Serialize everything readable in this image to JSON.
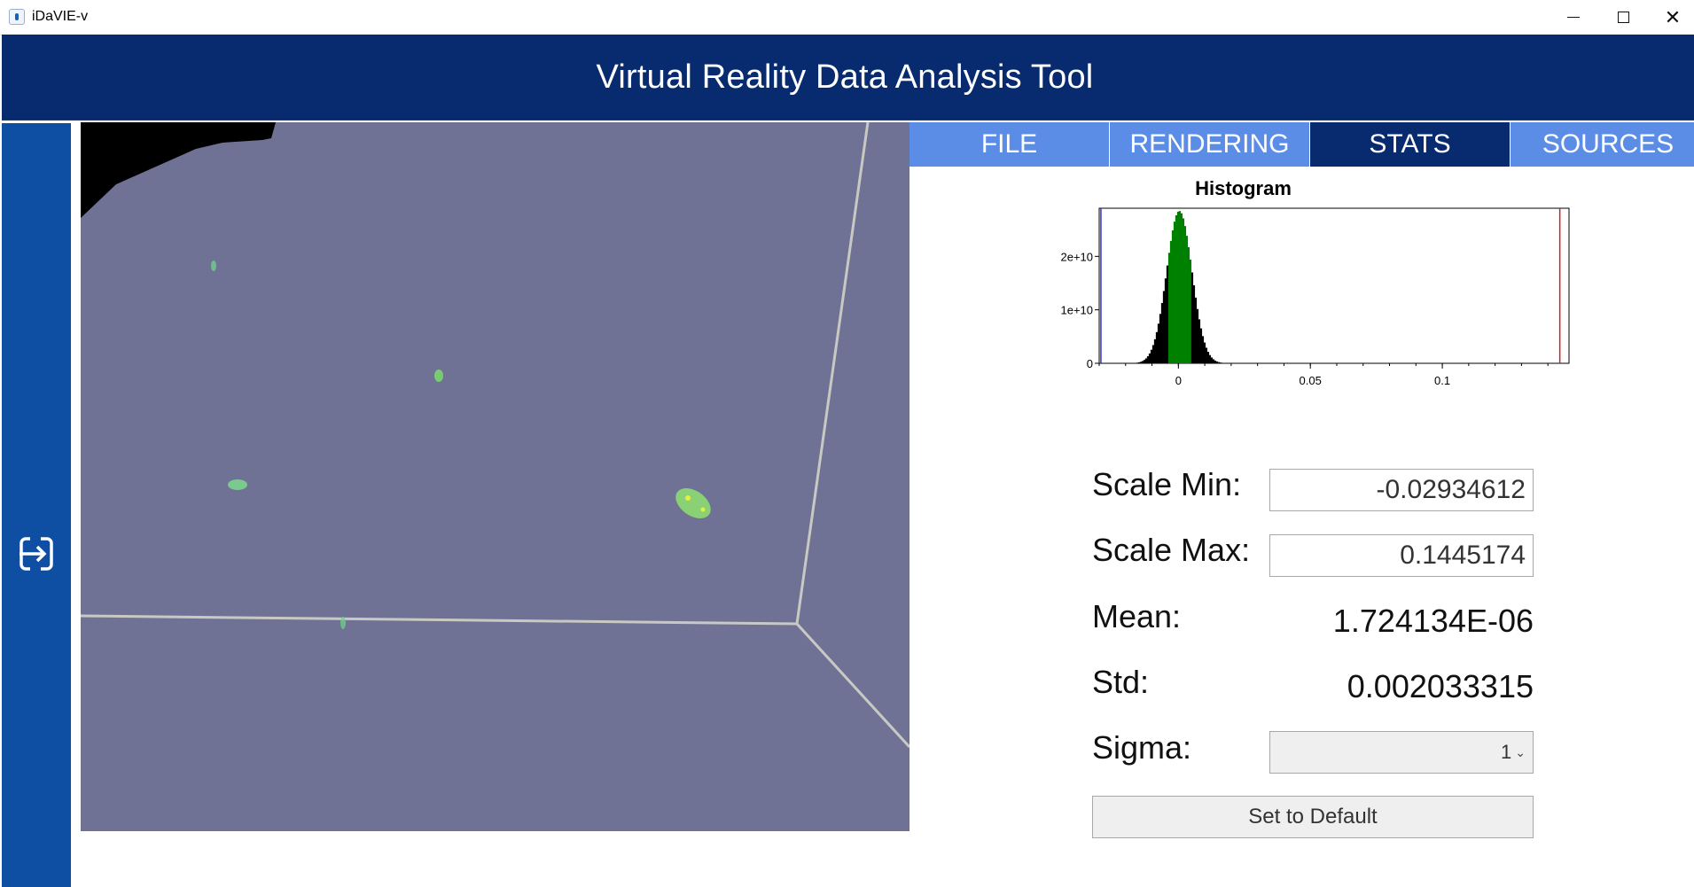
{
  "window": {
    "title": "iDaVIE-v",
    "icon": "idavie-app-icon"
  },
  "header": {
    "title": "Virtual Reality Data Analysis Tool"
  },
  "sidebar": {
    "exit_icon": "exit-icon"
  },
  "tabs": [
    {
      "label": "FILE",
      "active": false
    },
    {
      "label": "RENDERING",
      "active": false
    },
    {
      "label": "STATS",
      "active": true
    },
    {
      "label": "SOURCES",
      "active": false
    }
  ],
  "histogram": {
    "title": "Histogram",
    "y_ticks": [
      "0",
      "1e+10",
      "2e+10"
    ],
    "x_ticks": [
      "0",
      "0.05",
      "0.1"
    ]
  },
  "chart_data": {
    "type": "bar",
    "title": "Histogram",
    "xlabel": "",
    "ylabel": "",
    "xlim": [
      -0.03,
      0.148
    ],
    "ylim": [
      0,
      29000000000.0
    ],
    "x_ticks": [
      0,
      0.05,
      0.1
    ],
    "y_ticks": [
      0,
      10000000000.0,
      20000000000.0
    ],
    "peak_center": 0,
    "peak_height": 28500000000.0,
    "scale_min_marker": -0.02934612,
    "scale_max_marker": 0.1445174,
    "colors": {
      "bars": "#000000",
      "selected_range": "#008000",
      "min_marker": "#3333cc",
      "max_marker": "#cc2222"
    },
    "grid": false
  },
  "stats": {
    "scale_min_label": "Scale Min:",
    "scale_min_value": "-0.02934612",
    "scale_max_label": "Scale Max:",
    "scale_max_value": "0.1445174",
    "mean_label": "Mean:",
    "mean_value": "1.724134E-06",
    "std_label": "Std:",
    "std_value": "0.002033315",
    "sigma_label": "Sigma:",
    "sigma_value": "1",
    "default_button": "Set to Default"
  },
  "colors": {
    "header_bg": "#072b6e",
    "sidebar_bg": "#0e4ea3",
    "tab_inactive": "#5b8de6",
    "tab_active": "#072b6e",
    "viewport_bg": "#6f7294"
  }
}
